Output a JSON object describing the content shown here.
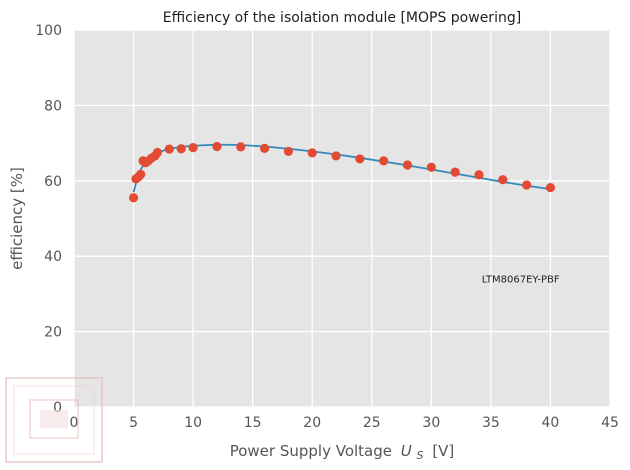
{
  "chart_data": {
    "type": "scatter",
    "title": "Efficiency of the isolation module [MOPS powering]",
    "xlabel": "Power Supply Voltage",
    "xlabel_symbol": "U",
    "xlabel_subscript": "S",
    "xlabel_unit": "[V]",
    "ylabel": "efficiency [%]",
    "xlim": [
      0,
      45
    ],
    "ylim": [
      0,
      100
    ],
    "xticks": [
      0,
      5,
      10,
      15,
      20,
      25,
      30,
      35,
      40,
      45
    ],
    "yticks": [
      0,
      20,
      40,
      60,
      80,
      100
    ],
    "grid": true,
    "annotation": "LTM8067EY-PBF",
    "colors": {
      "background": "#e5e5e5",
      "grid": "#ffffff",
      "points": "#e24a33",
      "fit_line": "#348abd"
    },
    "series": [
      {
        "kind": "points",
        "x": [
          5.0,
          5.2,
          5.4,
          5.6,
          5.8,
          6.0,
          6.2,
          6.5,
          6.8,
          7.0,
          8.0,
          9.0,
          10.0,
          12.0,
          14.0,
          16.0,
          18.0,
          20.0,
          22.0,
          24.0,
          26.0,
          28.0,
          30.0,
          32.0,
          34.0,
          36.0,
          38.0,
          40.0
        ],
        "y": [
          55.5,
          60.5,
          61.0,
          61.7,
          65.3,
          64.8,
          65.2,
          66.0,
          66.6,
          67.5,
          68.4,
          68.5,
          68.8,
          69.1,
          69.0,
          68.6,
          67.8,
          67.4,
          66.6,
          65.8,
          65.3,
          64.2,
          63.6,
          62.3,
          61.6,
          60.3,
          58.9,
          58.2
        ]
      },
      {
        "kind": "fit",
        "x": [
          5.0,
          5.3,
          5.6,
          6.0,
          6.5,
          7.0,
          8.0,
          9.0,
          10.0,
          12.0,
          14.0,
          16.0,
          18.0,
          20.0,
          22.0,
          24.0,
          26.0,
          28.0,
          30.0,
          32.0,
          34.0,
          36.0,
          38.0,
          40.0
        ],
        "y": [
          57.0,
          60.5,
          63.0,
          65.0,
          66.5,
          67.5,
          68.5,
          69.0,
          69.3,
          69.6,
          69.5,
          69.1,
          68.5,
          67.8,
          67.0,
          66.1,
          65.1,
          64.1,
          63.0,
          61.9,
          60.8,
          59.7,
          58.7,
          57.8
        ]
      }
    ]
  }
}
